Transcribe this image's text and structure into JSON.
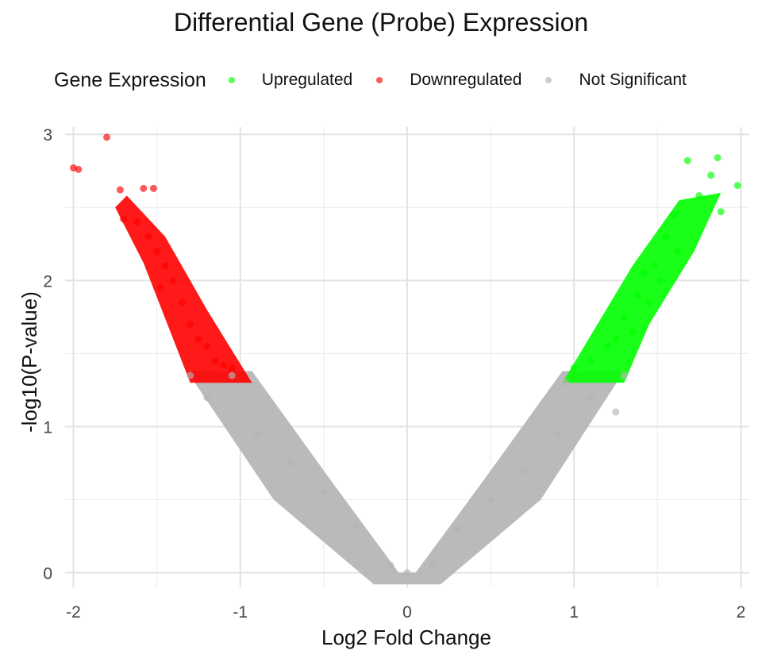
{
  "chart_data": {
    "type": "scatter",
    "title": "Differential Gene (Probe) Expression",
    "xlabel": "Log2 Fold Change",
    "ylabel": "-log10(P-value)",
    "xlim": [
      -2.05,
      2.05
    ],
    "ylim": [
      -0.1,
      3.05
    ],
    "x_ticks": [
      -2,
      -1,
      0,
      1,
      2
    ],
    "x_tick_labels": [
      "-2",
      "-1",
      "0",
      "1",
      "2"
    ],
    "y_ticks": [
      0,
      1,
      2,
      3
    ],
    "y_tick_labels": [
      "0",
      "1",
      "2",
      "3"
    ],
    "grid": true,
    "legend": {
      "title": "Gene Expression",
      "position": "top",
      "entries": [
        {
          "label": "Upregulated",
          "color": "#00ff00"
        },
        {
          "label": "Downregulated",
          "color": "#ff0000"
        },
        {
          "label": "Not Significant",
          "color": "#b3b3b3"
        }
      ]
    },
    "significance_threshold": 1.3,
    "series": [
      {
        "name": "Upregulated",
        "color": "#00ff00",
        "points": [
          [
            1.68,
            2.82
          ],
          [
            1.86,
            2.84
          ],
          [
            1.98,
            2.65
          ],
          [
            1.88,
            2.47
          ],
          [
            1.82,
            2.72
          ],
          [
            1.75,
            2.58
          ],
          [
            1.6,
            2.45
          ],
          [
            1.55,
            2.3
          ],
          [
            1.62,
            2.2
          ],
          [
            1.48,
            2.1
          ],
          [
            1.42,
            2.05
          ],
          [
            1.52,
            2.0
          ],
          [
            1.38,
            1.9
          ],
          [
            1.45,
            1.85
          ],
          [
            1.3,
            1.75
          ],
          [
            1.35,
            1.65
          ],
          [
            1.25,
            1.6
          ],
          [
            1.2,
            1.55
          ],
          [
            1.1,
            1.45
          ],
          [
            1.0,
            1.4
          ]
        ]
      },
      {
        "name": "Downregulated",
        "color": "#ff0000",
        "points": [
          [
            -1.8,
            2.98
          ],
          [
            -2.0,
            2.77
          ],
          [
            -1.97,
            2.76
          ],
          [
            -1.58,
            2.63
          ],
          [
            -1.72,
            2.62
          ],
          [
            -1.52,
            2.63
          ],
          [
            -1.7,
            2.42
          ],
          [
            -1.62,
            2.4
          ],
          [
            -1.55,
            2.3
          ],
          [
            -1.5,
            2.2
          ],
          [
            -1.45,
            2.1
          ],
          [
            -1.4,
            2.0
          ],
          [
            -1.48,
            1.95
          ],
          [
            -1.35,
            1.85
          ],
          [
            -1.3,
            1.7
          ],
          [
            -1.25,
            1.6
          ],
          [
            -1.2,
            1.55
          ],
          [
            -1.15,
            1.45
          ],
          [
            -1.1,
            1.42
          ],
          [
            -1.05,
            1.4
          ]
        ]
      },
      {
        "name": "Not Significant",
        "color": "#b3b3b3",
        "points": [
          [
            -1.3,
            1.35
          ],
          [
            -1.2,
            1.2
          ],
          [
            -1.05,
            1.35
          ],
          [
            -0.9,
            0.95
          ],
          [
            -0.7,
            0.75
          ],
          [
            -0.5,
            0.55
          ],
          [
            -0.3,
            0.32
          ],
          [
            -0.1,
            0.05
          ],
          [
            0.0,
            0.0
          ],
          [
            0.15,
            0.05
          ],
          [
            0.3,
            0.3
          ],
          [
            0.5,
            0.5
          ],
          [
            0.7,
            0.7
          ],
          [
            0.9,
            0.95
          ],
          [
            1.1,
            1.2
          ],
          [
            1.3,
            1.35
          ],
          [
            0.95,
            1.3
          ],
          [
            1.25,
            1.1
          ]
        ]
      }
    ]
  }
}
